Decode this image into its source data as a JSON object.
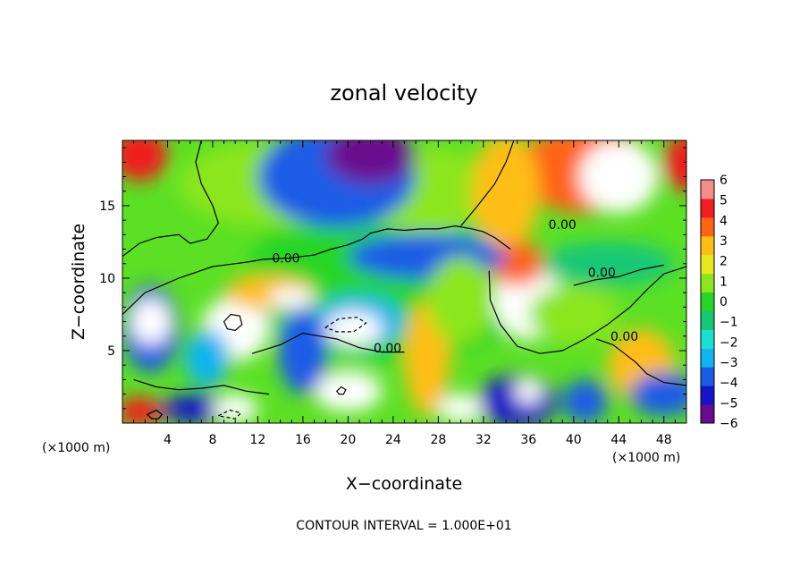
{
  "chart_data": {
    "type": "heatmap",
    "title": "zonal velocity",
    "xlabel": "X−coordinate",
    "ylabel": "Z−coordinate",
    "x_unit_left": "(×1000 m)",
    "x_unit_right": "(×1000 m)",
    "xlim": [
      0,
      50
    ],
    "ylim": [
      0,
      19.5
    ],
    "x_ticks": [
      4,
      8,
      12,
      16,
      20,
      24,
      28,
      32,
      36,
      40,
      44,
      48
    ],
    "x_tick_labels": [
      "4",
      "8",
      "12",
      "16",
      "20",
      "24",
      "28",
      "32",
      "36",
      "40",
      "44",
      "48"
    ],
    "y_ticks": [
      5,
      10,
      15
    ],
    "y_tick_labels": [
      "5",
      "10",
      "15"
    ],
    "colorbar": {
      "range": [
        -6,
        6
      ],
      "ticks": [
        6,
        5,
        4,
        3,
        2,
        1,
        0,
        -1,
        -2,
        -3,
        -4,
        -5,
        -6
      ],
      "tick_labels": [
        "6",
        "5",
        "4",
        "3",
        "2",
        "1",
        "0",
        "−1",
        "−2",
        "−3",
        "−4",
        "−5",
        "−6"
      ],
      "colors": [
        "#6a0a8e",
        "#1414c8",
        "#1a5ce6",
        "#10b4f0",
        "#19e0d0",
        "#14c878",
        "#26d626",
        "#8ce61e",
        "#e8e81e",
        "#ffbe14",
        "#ff6414",
        "#f01e1e",
        "#f58c8c"
      ]
    },
    "contour_labels": [
      {
        "x": 39,
        "y": 13.5,
        "text": "0.00"
      },
      {
        "x": 14.5,
        "y": 11.2,
        "text": "0.00"
      },
      {
        "x": 42.5,
        "y": 10.2,
        "text": "0.00"
      },
      {
        "x": 23.5,
        "y": 5.0,
        "text": "0.00"
      },
      {
        "x": 44.5,
        "y": 5.8,
        "text": "0.00"
      }
    ],
    "footnote": "CONTOUR INTERVAL = 1.000E+01",
    "blobs": [
      {
        "x": 24,
        "y": 10,
        "rx": 13,
        "ry": 6,
        "v": 0.3
      },
      {
        "x": 14,
        "y": 16.5,
        "rx": 9,
        "ry": 3,
        "v": 0.8
      },
      {
        "x": 27,
        "y": 16,
        "rx": 6,
        "ry": 3,
        "v": 1.3
      },
      {
        "x": 19,
        "y": 17,
        "rx": 7,
        "ry": 3.5,
        "v": -3.5
      },
      {
        "x": 22,
        "y": 18.5,
        "rx": 4,
        "ry": 2,
        "v": -6
      },
      {
        "x": 41,
        "y": 17.5,
        "rx": 6,
        "ry": 3,
        "v": 4
      },
      {
        "x": 44,
        "y": 17,
        "rx": 3.5,
        "ry": 2.5,
        "v": 6
      },
      {
        "x": 50,
        "y": 18,
        "rx": 2,
        "ry": 2,
        "v": 5
      },
      {
        "x": 34,
        "y": 16,
        "rx": 3,
        "ry": 4,
        "v": 2.5
      },
      {
        "x": 1.5,
        "y": 18.5,
        "rx": 2.5,
        "ry": 1.8,
        "v": 4.5
      },
      {
        "x": 10,
        "y": 6.5,
        "rx": 3,
        "ry": 2.2,
        "v": 6
      },
      {
        "x": 13,
        "y": 9,
        "rx": 4,
        "ry": 1.2,
        "v": 3
      },
      {
        "x": 15,
        "y": 8.6,
        "rx": 2,
        "ry": 0.7,
        "v": 6
      },
      {
        "x": 36,
        "y": 8.5,
        "rx": 3,
        "ry": 2.8,
        "v": 6
      },
      {
        "x": 35,
        "y": 11,
        "rx": 2.5,
        "ry": 1.5,
        "v": 3.5
      },
      {
        "x": 27,
        "y": 4.5,
        "rx": 2,
        "ry": 4,
        "v": 3
      },
      {
        "x": 20,
        "y": 2.2,
        "rx": 3,
        "ry": 1.4,
        "v": 6
      },
      {
        "x": 21,
        "y": 7,
        "rx": 4,
        "ry": 1.8,
        "v": -3
      },
      {
        "x": 20.5,
        "y": 6.5,
        "rx": 2.5,
        "ry": 1.2,
        "v": 6
      },
      {
        "x": 27,
        "y": 11.5,
        "rx": 7,
        "ry": 1.6,
        "v": -4
      },
      {
        "x": 2.5,
        "y": 6.5,
        "rx": 2.5,
        "ry": 3,
        "v": -4
      },
      {
        "x": 2.5,
        "y": 7,
        "rx": 1.8,
        "ry": 1.6,
        "v": 6
      },
      {
        "x": 7.5,
        "y": 4.5,
        "rx": 2,
        "ry": 2,
        "v": -3
      },
      {
        "x": 16,
        "y": 5,
        "rx": 2.2,
        "ry": 3,
        "v": -3.5
      },
      {
        "x": 35,
        "y": 1.5,
        "rx": 3.5,
        "ry": 1.8,
        "v": -5
      },
      {
        "x": 36,
        "y": 2.2,
        "rx": 1.2,
        "ry": 0.9,
        "v": 6
      },
      {
        "x": 41,
        "y": 1.5,
        "rx": 2,
        "ry": 1.5,
        "v": -4
      },
      {
        "x": 46,
        "y": 4,
        "rx": 3,
        "ry": 2.5,
        "v": 2.5
      },
      {
        "x": 48,
        "y": 2,
        "rx": 3,
        "ry": 1.5,
        "v": -3.5
      },
      {
        "x": 6.5,
        "y": 1,
        "rx": 3,
        "ry": 1,
        "v": -5
      },
      {
        "x": 10,
        "y": 1,
        "rx": 2,
        "ry": 1,
        "v": 6
      },
      {
        "x": 1.5,
        "y": 0.8,
        "rx": 2,
        "ry": 1,
        "v": 5
      },
      {
        "x": 30,
        "y": 1,
        "rx": 2,
        "ry": 1,
        "v": 6
      },
      {
        "x": 40,
        "y": 7.5,
        "rx": 4,
        "ry": 2,
        "v": 0.6
      },
      {
        "x": 43,
        "y": 11,
        "rx": 6,
        "ry": 1.5,
        "v": -1
      },
      {
        "x": 30,
        "y": 8.5,
        "rx": 3,
        "ry": 3,
        "v": 0.8
      }
    ],
    "contours": [
      {
        "style": "solid",
        "points": [
          [
            0,
            11.5
          ],
          [
            1.5,
            12.4
          ],
          [
            3,
            12.8
          ],
          [
            5,
            13
          ],
          [
            6,
            12.4
          ],
          [
            7.5,
            12.7
          ],
          [
            8.5,
            13.8
          ],
          [
            8,
            15
          ],
          [
            7,
            16.5
          ],
          [
            6.5,
            18
          ],
          [
            7,
            19.5
          ]
        ]
      },
      {
        "style": "solid",
        "points": [
          [
            17,
            11.6
          ],
          [
            18.5,
            12
          ],
          [
            20,
            12.3
          ],
          [
            21.3,
            12.7
          ],
          [
            22,
            13.1
          ],
          [
            23.5,
            13.4
          ],
          [
            25,
            13.3
          ],
          [
            26.5,
            13.4
          ],
          [
            28,
            13.4
          ],
          [
            29.5,
            13.6
          ],
          [
            31,
            13.4
          ],
          [
            32,
            13.2
          ],
          [
            33,
            12.8
          ],
          [
            34.4,
            12
          ]
        ]
      },
      {
        "style": "solid",
        "points": [
          [
            30,
            13.6
          ],
          [
            31.5,
            15
          ],
          [
            33,
            16.5
          ],
          [
            34,
            18
          ],
          [
            34.7,
            19.5
          ]
        ]
      },
      {
        "style": "solid",
        "points": [
          [
            0,
            7.5
          ],
          [
            2,
            9
          ],
          [
            5,
            10
          ],
          [
            8,
            10.8
          ],
          [
            11,
            11.1
          ],
          [
            12.5,
            11.3
          ],
          [
            15,
            11.4
          ],
          [
            17,
            11.6
          ]
        ]
      },
      {
        "style": "solid",
        "points": [
          [
            32.5,
            10.5
          ],
          [
            32.6,
            8.5
          ],
          [
            33.5,
            6.8
          ],
          [
            35,
            5.3
          ],
          [
            37,
            4.8
          ],
          [
            39,
            5
          ],
          [
            41,
            5.8
          ],
          [
            43,
            6.8
          ],
          [
            45,
            8
          ],
          [
            46.5,
            9.2
          ],
          [
            48,
            10.3
          ],
          [
            50,
            10.8
          ]
        ]
      },
      {
        "style": "solid",
        "points": [
          [
            40,
            9.5
          ],
          [
            42,
            9.9
          ],
          [
            44,
            10.1
          ],
          [
            46,
            10.6
          ],
          [
            48,
            10.9
          ]
        ]
      },
      {
        "style": "solid",
        "points": [
          [
            11.5,
            4.8
          ],
          [
            14,
            5.4
          ],
          [
            16,
            6.2
          ],
          [
            17.5,
            6
          ],
          [
            19,
            5.8
          ],
          [
            21,
            5.2
          ],
          [
            23,
            4.9
          ],
          [
            25,
            4.9
          ]
        ]
      },
      {
        "style": "solid",
        "points": [
          [
            1,
            3
          ],
          [
            3,
            2.5
          ],
          [
            5,
            2.3
          ],
          [
            7,
            2.4
          ],
          [
            9,
            2.6
          ],
          [
            11,
            2.2
          ],
          [
            13,
            2
          ]
        ]
      },
      {
        "style": "solid",
        "points": [
          [
            42,
            5.8
          ],
          [
            43.5,
            5.4
          ],
          [
            44.5,
            4.8
          ],
          [
            45.5,
            4.2
          ],
          [
            46.5,
            3.4
          ],
          [
            48,
            2.8
          ],
          [
            50,
            2.6
          ]
        ]
      },
      {
        "style": "closed",
        "points": [
          [
            9,
            7
          ],
          [
            9.6,
            7.5
          ],
          [
            10.4,
            7.4
          ],
          [
            10.6,
            6.8
          ],
          [
            10,
            6.4
          ],
          [
            9.3,
            6.5
          ]
        ]
      },
      {
        "style": "dashed",
        "points": [
          [
            18,
            6.6
          ],
          [
            19.2,
            7.2
          ],
          [
            20.8,
            7.3
          ],
          [
            21.6,
            6.9
          ],
          [
            20.5,
            6.3
          ],
          [
            19,
            6.3
          ]
        ]
      },
      {
        "style": "closed",
        "points": [
          [
            19,
            2.2
          ],
          [
            19.4,
            2.5
          ],
          [
            19.8,
            2.3
          ],
          [
            19.6,
            2
          ],
          [
            19.2,
            2
          ]
        ]
      },
      {
        "style": "closed",
        "points": [
          [
            2.2,
            0.6
          ],
          [
            3,
            0.9
          ],
          [
            3.5,
            0.6
          ],
          [
            3.2,
            0.3
          ],
          [
            2.6,
            0.3
          ]
        ]
      },
      {
        "style": "dashed",
        "points": [
          [
            8.5,
            0.5
          ],
          [
            9.5,
            0.9
          ],
          [
            10.5,
            0.7
          ],
          [
            10,
            0.3
          ]
        ]
      }
    ]
  }
}
